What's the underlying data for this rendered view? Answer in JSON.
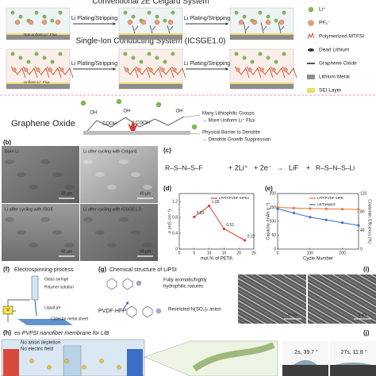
{
  "schematic": {
    "conventional_title": "Conventional 2E Celgard System",
    "ion_title": "Single-Ion Conducting System (ICSGE1.0)",
    "step": "Li Plating/Stripping",
    "nonuniform_flux": "Non-uniform Li⁺ Flux",
    "uniform_flux": "Uniform Li⁺ Flux",
    "legend": [
      "Li⁺",
      "PF₆⁻",
      "Polymerized MTFSI",
      "Dead Lithium",
      "Graphene Oxide",
      "Lithium Metal",
      "SEI Layer"
    ],
    "go_title": "Graphene Oxide",
    "groups": [
      "OH",
      "OH",
      "COOH",
      "COOH",
      "OH"
    ],
    "notes": [
      "Many Lithiophilic Groups",
      "→ More Uniform Li⁺ Flux",
      "Physical Barrier to Dendrite",
      "→ Dendrite Growth Suppression"
    ]
  },
  "panel_b": {
    "label": "(b)",
    "images": [
      "Bare Li",
      "Li after cycling with Celgard",
      "Li after cycling with ISGE",
      "Li after cycling with ICSGE1.0"
    ],
    "scale": "40 μm"
  },
  "panel_c": {
    "label": "(c)",
    "terms": [
      "R–S–N–S–F",
      "+ 2Li⁺",
      "+ 2e⁻",
      "→",
      "LiF",
      "+",
      "R–S–N–S–Li"
    ]
  },
  "chart_data": [
    {
      "type": "line",
      "label": "(d)",
      "xlabel": "mol.% of PETA",
      "ylabel": "σ (mS cm⁻¹)",
      "x": [
        5,
        10,
        15,
        22
      ],
      "series": [
        {
          "name": "LFPP/PVDF SIPEs",
          "color": "#e03c31",
          "values": [
            0.81,
            1.09,
            0.51,
            0.22
          ]
        }
      ],
      "xlim": [
        0,
        25
      ],
      "xticks": [
        0,
        5,
        10,
        15,
        20,
        25
      ],
      "ylim": [
        0,
        1.4
      ],
      "yticks": [
        0,
        0.4,
        0.8,
        1.2
      ],
      "data_labels": true
    },
    {
      "type": "line",
      "label": "(e)",
      "xlabel": "Cycle Number",
      "ylabel": "Capacity (mAh g⁻¹)",
      "y2label": "Coulombic Efficiency (%)",
      "x": [
        0,
        50,
        100,
        150,
        200,
        250
      ],
      "series": [
        {
          "name": "LFP/PVDF SIPE",
          "color": "#e8772e",
          "values": [
            150,
            148,
            146,
            145,
            144,
            143
          ]
        },
        {
          "name": "LE/Celgard",
          "color": "#3a6fc4",
          "values": [
            145,
            130,
            115,
            105,
            95,
            85
          ]
        }
      ],
      "xlim": [
        0,
        250
      ],
      "xticks": [
        0,
        100,
        200
      ],
      "ylim": [
        0,
        200
      ],
      "yticks": [
        0,
        50,
        100,
        150,
        200
      ],
      "y2lim": [
        0,
        120
      ],
      "y2ticks": [
        0,
        40,
        80,
        120
      ]
    }
  ],
  "panel_f": {
    "label": "(f)",
    "title": "Electrospinning process",
    "parts": [
      "Glass syringe",
      "Polymer solution",
      "Liquid jet",
      "Collector metal sheet"
    ],
    "voltage": "V"
  },
  "panel_g": {
    "label": "(g)",
    "title": "Chemical structure of LiPSI",
    "notes": [
      "Fully aromatic/highly",
      "hydrophilic natures",
      "Restricted N(SO₂)₂ anion"
    ],
    "polymer": "PVDF-HFP"
  },
  "panel_i": {
    "label": "(i)",
    "scales": [
      "20 μm",
      "5 μm"
    ]
  },
  "panel_h": {
    "label": "(h)",
    "title": "es-PVPSI nanofiber membrane for LIB",
    "points": [
      "No anion depletion",
      "No electric field"
    ]
  },
  "panel_j": {
    "label": "(j)",
    "frames": [
      "2s, 39.7 °",
      "27s, 11.8 °"
    ]
  }
}
